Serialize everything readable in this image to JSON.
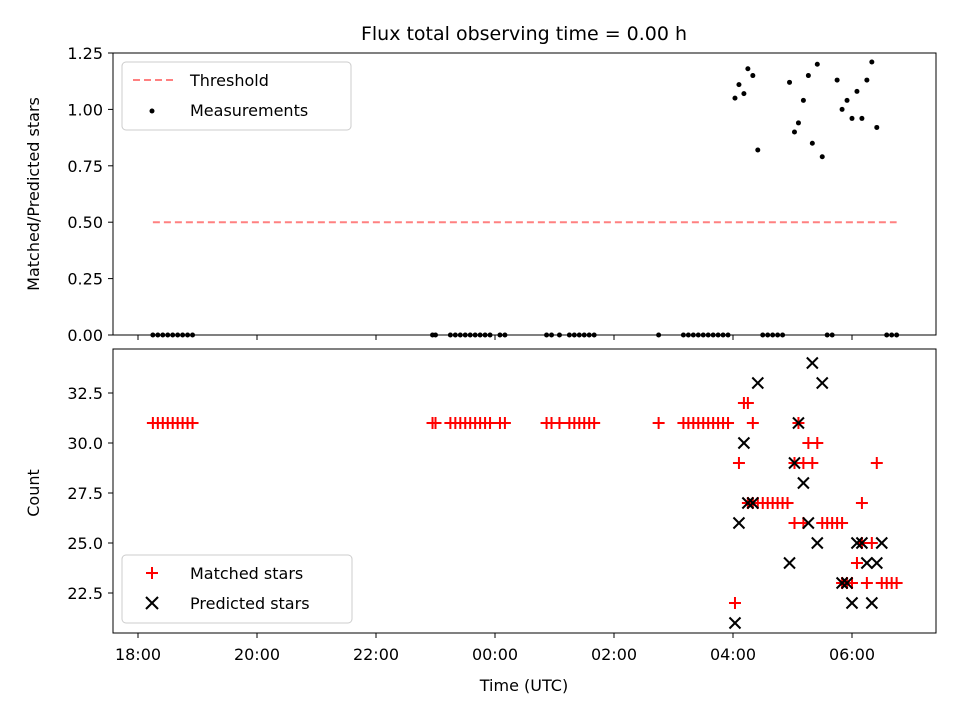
{
  "chart_data": [
    {
      "type": "scatter",
      "panel": "top",
      "title": "Flux total observing time = 0.00 h",
      "ylabel": "Matched/Predicted stars",
      "xlabel": "",
      "ylim": [
        0,
        1.25
      ],
      "yticks": [
        0.0,
        0.25,
        0.5,
        0.75,
        1.0,
        1.25
      ],
      "ytick_labels": [
        "0.00",
        "0.25",
        "0.50",
        "0.75",
        "1.00",
        "1.25"
      ],
      "legend_position": "top-left",
      "threshold": {
        "name": "Threshold",
        "value": 0.5,
        "x_start": "18:15",
        "x_end": "06:45",
        "color": "#ff8080",
        "style": "dashed"
      },
      "series": [
        {
          "name": "Measurements",
          "color": "#000000",
          "marker": "dot",
          "points": [
            {
              "x": "18:15",
              "y": 0
            },
            {
              "x": "18:20",
              "y": 0
            },
            {
              "x": "18:25",
              "y": 0
            },
            {
              "x": "18:30",
              "y": 0
            },
            {
              "x": "18:35",
              "y": 0
            },
            {
              "x": "18:40",
              "y": 0
            },
            {
              "x": "18:45",
              "y": 0
            },
            {
              "x": "18:50",
              "y": 0
            },
            {
              "x": "18:55",
              "y": 0
            },
            {
              "x": "22:57",
              "y": 0
            },
            {
              "x": "23:00",
              "y": 0
            },
            {
              "x": "23:15",
              "y": 0
            },
            {
              "x": "23:20",
              "y": 0
            },
            {
              "x": "23:25",
              "y": 0
            },
            {
              "x": "23:30",
              "y": 0
            },
            {
              "x": "23:35",
              "y": 0
            },
            {
              "x": "23:40",
              "y": 0
            },
            {
              "x": "23:45",
              "y": 0
            },
            {
              "x": "23:50",
              "y": 0
            },
            {
              "x": "23:55",
              "y": 0
            },
            {
              "x": "00:05",
              "y": 0
            },
            {
              "x": "00:10",
              "y": 0
            },
            {
              "x": "00:52",
              "y": 0
            },
            {
              "x": "00:57",
              "y": 0
            },
            {
              "x": "01:05",
              "y": 0
            },
            {
              "x": "01:15",
              "y": 0
            },
            {
              "x": "01:20",
              "y": 0
            },
            {
              "x": "01:25",
              "y": 0
            },
            {
              "x": "01:30",
              "y": 0
            },
            {
              "x": "01:35",
              "y": 0
            },
            {
              "x": "01:40",
              "y": 0
            },
            {
              "x": "02:45",
              "y": 0
            },
            {
              "x": "03:10",
              "y": 0
            },
            {
              "x": "03:15",
              "y": 0
            },
            {
              "x": "03:20",
              "y": 0
            },
            {
              "x": "03:25",
              "y": 0
            },
            {
              "x": "03:30",
              "y": 0
            },
            {
              "x": "03:35",
              "y": 0
            },
            {
              "x": "03:40",
              "y": 0
            },
            {
              "x": "03:45",
              "y": 0
            },
            {
              "x": "03:50",
              "y": 0
            },
            {
              "x": "03:55",
              "y": 0
            },
            {
              "x": "04:02",
              "y": 1.05
            },
            {
              "x": "04:06",
              "y": 1.11
            },
            {
              "x": "04:11",
              "y": 1.07
            },
            {
              "x": "04:15",
              "y": 1.18
            },
            {
              "x": "04:20",
              "y": 1.15
            },
            {
              "x": "04:25",
              "y": 0.82
            },
            {
              "x": "04:30",
              "y": 0
            },
            {
              "x": "04:35",
              "y": 0
            },
            {
              "x": "04:40",
              "y": 0
            },
            {
              "x": "04:45",
              "y": 0
            },
            {
              "x": "04:50",
              "y": 0
            },
            {
              "x": "04:57",
              "y": 1.12
            },
            {
              "x": "05:02",
              "y": 0.9
            },
            {
              "x": "05:06",
              "y": 0.94
            },
            {
              "x": "05:11",
              "y": 1.04
            },
            {
              "x": "05:16",
              "y": 1.15
            },
            {
              "x": "05:20",
              "y": 0.85
            },
            {
              "x": "05:25",
              "y": 1.2
            },
            {
              "x": "05:30",
              "y": 0.79
            },
            {
              "x": "05:35",
              "y": 0
            },
            {
              "x": "05:40",
              "y": 0
            },
            {
              "x": "05:45",
              "y": 1.13
            },
            {
              "x": "05:50",
              "y": 1.0
            },
            {
              "x": "05:55",
              "y": 1.04
            },
            {
              "x": "06:00",
              "y": 0.96
            },
            {
              "x": "06:05",
              "y": 1.08
            },
            {
              "x": "06:10",
              "y": 0.96
            },
            {
              "x": "06:15",
              "y": 1.13
            },
            {
              "x": "06:20",
              "y": 1.21
            },
            {
              "x": "06:25",
              "y": 0.92
            },
            {
              "x": "06:35",
              "y": 0
            },
            {
              "x": "06:40",
              "y": 0
            },
            {
              "x": "06:45",
              "y": 0
            }
          ]
        }
      ]
    },
    {
      "type": "scatter",
      "panel": "bottom",
      "xlabel": "Time (UTC)",
      "ylabel": "Count",
      "ylim": [
        20.5,
        34.7
      ],
      "yticks": [
        22.5,
        25.0,
        27.5,
        30.0,
        32.5
      ],
      "ytick_labels": [
        "22.5",
        "25.0",
        "27.5",
        "30.0",
        "32.5"
      ],
      "xlim": [
        "17:45",
        "07:30"
      ],
      "xticks": [
        "18:00",
        "20:00",
        "22:00",
        "00:00",
        "02:00",
        "04:00",
        "06:00"
      ],
      "legend_position": "bottom-left",
      "series": [
        {
          "name": "Matched stars",
          "color": "#ff0000",
          "marker": "plus",
          "points": [
            {
              "x": "18:15",
              "y": 31
            },
            {
              "x": "18:20",
              "y": 31
            },
            {
              "x": "18:25",
              "y": 31
            },
            {
              "x": "18:30",
              "y": 31
            },
            {
              "x": "18:35",
              "y": 31
            },
            {
              "x": "18:40",
              "y": 31
            },
            {
              "x": "18:45",
              "y": 31
            },
            {
              "x": "18:50",
              "y": 31
            },
            {
              "x": "18:55",
              "y": 31
            },
            {
              "x": "22:57",
              "y": 31
            },
            {
              "x": "23:00",
              "y": 31
            },
            {
              "x": "23:15",
              "y": 31
            },
            {
              "x": "23:20",
              "y": 31
            },
            {
              "x": "23:25",
              "y": 31
            },
            {
              "x": "23:30",
              "y": 31
            },
            {
              "x": "23:35",
              "y": 31
            },
            {
              "x": "23:40",
              "y": 31
            },
            {
              "x": "23:45",
              "y": 31
            },
            {
              "x": "23:50",
              "y": 31
            },
            {
              "x": "23:55",
              "y": 31
            },
            {
              "x": "00:05",
              "y": 31
            },
            {
              "x": "00:10",
              "y": 31
            },
            {
              "x": "00:52",
              "y": 31
            },
            {
              "x": "00:57",
              "y": 31
            },
            {
              "x": "01:05",
              "y": 31
            },
            {
              "x": "01:15",
              "y": 31
            },
            {
              "x": "01:20",
              "y": 31
            },
            {
              "x": "01:25",
              "y": 31
            },
            {
              "x": "01:30",
              "y": 31
            },
            {
              "x": "01:35",
              "y": 31
            },
            {
              "x": "01:40",
              "y": 31
            },
            {
              "x": "02:45",
              "y": 31
            },
            {
              "x": "03:10",
              "y": 31
            },
            {
              "x": "03:15",
              "y": 31
            },
            {
              "x": "03:20",
              "y": 31
            },
            {
              "x": "03:25",
              "y": 31
            },
            {
              "x": "03:30",
              "y": 31
            },
            {
              "x": "03:35",
              "y": 31
            },
            {
              "x": "03:40",
              "y": 31
            },
            {
              "x": "03:45",
              "y": 31
            },
            {
              "x": "03:50",
              "y": 31
            },
            {
              "x": "03:55",
              "y": 31
            },
            {
              "x": "04:02",
              "y": 22
            },
            {
              "x": "04:06",
              "y": 29
            },
            {
              "x": "04:11",
              "y": 32
            },
            {
              "x": "04:15",
              "y": 32
            },
            {
              "x": "04:15",
              "y": 27
            },
            {
              "x": "04:20",
              "y": 27
            },
            {
              "x": "04:25",
              "y": 27
            },
            {
              "x": "04:20",
              "y": 31
            },
            {
              "x": "04:30",
              "y": 27
            },
            {
              "x": "04:35",
              "y": 27
            },
            {
              "x": "04:40",
              "y": 27
            },
            {
              "x": "04:45",
              "y": 27
            },
            {
              "x": "04:50",
              "y": 27
            },
            {
              "x": "04:55",
              "y": 27
            },
            {
              "x": "05:02",
              "y": 26
            },
            {
              "x": "05:02",
              "y": 29
            },
            {
              "x": "05:06",
              "y": 31
            },
            {
              "x": "05:11",
              "y": 29
            },
            {
              "x": "05:16",
              "y": 30
            },
            {
              "x": "05:20",
              "y": 29
            },
            {
              "x": "05:25",
              "y": 30
            },
            {
              "x": "05:11",
              "y": 26
            },
            {
              "x": "05:30",
              "y": 26
            },
            {
              "x": "05:35",
              "y": 26
            },
            {
              "x": "05:40",
              "y": 26
            },
            {
              "x": "05:45",
              "y": 26
            },
            {
              "x": "05:50",
              "y": 26
            },
            {
              "x": "05:50",
              "y": 23
            },
            {
              "x": "05:55",
              "y": 23
            },
            {
              "x": "06:00",
              "y": 23
            },
            {
              "x": "06:05",
              "y": 24
            },
            {
              "x": "06:10",
              "y": 25
            },
            {
              "x": "06:10",
              "y": 27
            },
            {
              "x": "06:15",
              "y": 23
            },
            {
              "x": "06:20",
              "y": 25
            },
            {
              "x": "06:25",
              "y": 29
            },
            {
              "x": "06:30",
              "y": 23
            },
            {
              "x": "06:35",
              "y": 23
            },
            {
              "x": "06:40",
              "y": 23
            },
            {
              "x": "06:45",
              "y": 23
            }
          ]
        },
        {
          "name": "Predicted stars",
          "color": "#000000",
          "marker": "x",
          "points": [
            {
              "x": "04:02",
              "y": 21
            },
            {
              "x": "04:06",
              "y": 26
            },
            {
              "x": "04:11",
              "y": 30
            },
            {
              "x": "04:15",
              "y": 27
            },
            {
              "x": "04:20",
              "y": 27
            },
            {
              "x": "04:25",
              "y": 33
            },
            {
              "x": "04:57",
              "y": 24
            },
            {
              "x": "05:02",
              "y": 29
            },
            {
              "x": "05:06",
              "y": 31
            },
            {
              "x": "05:11",
              "y": 28
            },
            {
              "x": "05:16",
              "y": 26
            },
            {
              "x": "05:20",
              "y": 34
            },
            {
              "x": "05:25",
              "y": 25
            },
            {
              "x": "05:30",
              "y": 33
            },
            {
              "x": "05:50",
              "y": 23
            },
            {
              "x": "05:55",
              "y": 23
            },
            {
              "x": "06:00",
              "y": 22
            },
            {
              "x": "06:05",
              "y": 25
            },
            {
              "x": "06:10",
              "y": 25
            },
            {
              "x": "06:15",
              "y": 24
            },
            {
              "x": "06:20",
              "y": 22
            },
            {
              "x": "06:25",
              "y": 24
            },
            {
              "x": "06:30",
              "y": 25
            }
          ]
        }
      ]
    }
  ]
}
